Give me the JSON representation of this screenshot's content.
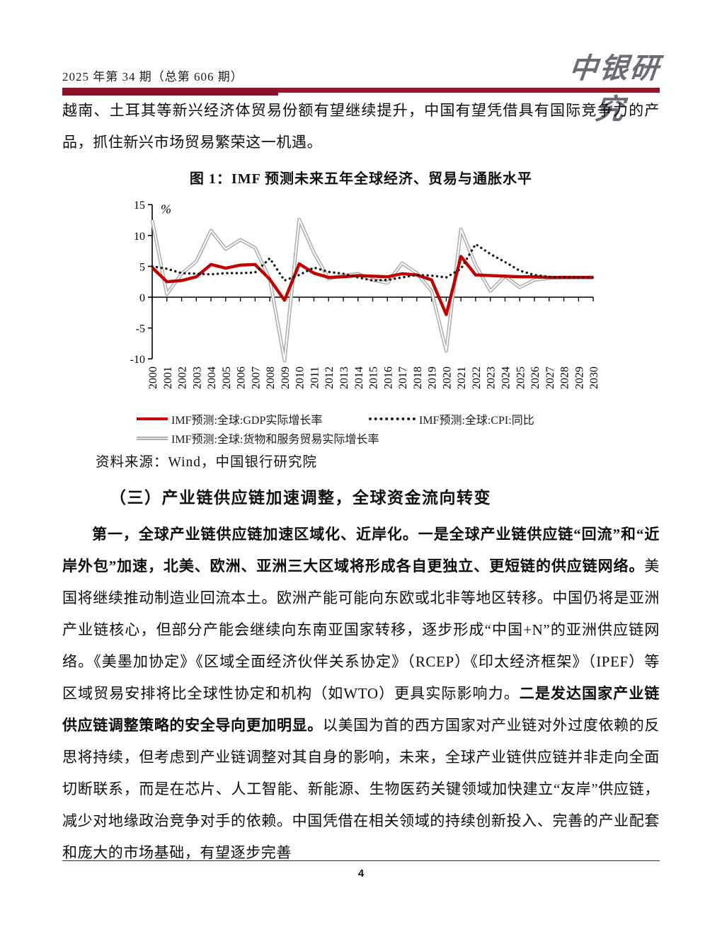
{
  "header": {
    "issue": "2025 年第 34 期（总第 606 期）",
    "logo": "中银研究"
  },
  "intro_paragraph": "越南、土耳其等新兴经济体贸易份额有望继续提升，中国有望凭借具有国际竞争力的产品，抓住新兴市场贸易繁荣这一机遇。",
  "figure": {
    "title": "图 1：IMF 预测未来五年全球经济、贸易与通胀水平",
    "source": "资料来源：Wind，中国银行研究院"
  },
  "chart_data": {
    "type": "line",
    "x": [
      2000,
      2001,
      2002,
      2003,
      2004,
      2005,
      2006,
      2007,
      2008,
      2009,
      2010,
      2011,
      2012,
      2013,
      2014,
      2015,
      2016,
      2017,
      2018,
      2019,
      2020,
      2021,
      2022,
      2023,
      2024,
      2025,
      2026,
      2027,
      2028,
      2029,
      2030
    ],
    "series": [
      {
        "name": "IMF预测:全球:GDP实际增长率",
        "style": "solid",
        "color": "#c00000",
        "values": [
          4.8,
          2.5,
          2.7,
          3.3,
          5.3,
          4.7,
          5.2,
          5.3,
          2.9,
          -0.5,
          5.4,
          3.9,
          3.2,
          3.3,
          3.5,
          3.4,
          3.3,
          3.8,
          3.6,
          2.8,
          -2.8,
          6.6,
          3.6,
          3.5,
          3.4,
          3.3,
          3.3,
          3.2,
          3.2,
          3.2,
          3.2
        ]
      },
      {
        "name": "IMF预测:全球:CPI:同比",
        "style": "dotted",
        "color": "#1a1a1a",
        "values": [
          5.0,
          4.6,
          3.9,
          3.8,
          3.7,
          3.9,
          3.9,
          4.0,
          6.3,
          2.7,
          3.6,
          4.8,
          4.1,
          3.8,
          3.2,
          2.7,
          2.8,
          3.2,
          3.6,
          3.5,
          3.2,
          4.6,
          8.6,
          7.0,
          5.7,
          4.3,
          3.6,
          3.3,
          3.2,
          3.2,
          3.2
        ]
      },
      {
        "name": "IMF预测:全球:货物和服务贸易实际增长率",
        "style": "double-gray",
        "color": "#b0b0b0",
        "values": [
          12.5,
          0.5,
          3.8,
          5.8,
          10.8,
          7.8,
          9.3,
          8.0,
          2.9,
          -10.3,
          12.6,
          7.2,
          3.0,
          3.5,
          3.8,
          2.8,
          2.3,
          5.5,
          3.9,
          1.0,
          -8.7,
          11.0,
          5.2,
          1.0,
          3.4,
          1.6,
          2.8,
          3.1,
          3.2,
          3.2,
          3.2
        ]
      }
    ],
    "title": "图 1：IMF 预测未来五年全球经济、贸易与通胀水平",
    "xlabel": "",
    "ylabel": "%",
    "ylim": [
      -10,
      15
    ],
    "yticks": [
      15,
      10,
      5,
      0,
      -5,
      -10
    ],
    "grid": false,
    "legend_position": "bottom"
  },
  "section": {
    "heading": "（三）产业链供应链加速调整，全球资金流向转变",
    "paragraph_runs": [
      {
        "bold": true,
        "text": "第一，全球产业链供应链加速区域化、近岸化。一是全球产业链供应链“回流”和“近岸外包”加速，北美、欧洲、亚洲三大区域将形成各自更独立、更短链的供应链网络。"
      },
      {
        "bold": false,
        "text": "美国将继续推动制造业回流本土。欧洲产能可能向东欧或北非等地区转移。中国仍将是亚洲产业链核心，但部分产能会继续向东南亚国家转移，逐步形成“中国+N”的亚洲供应链网络。《美墨加协定》《区域全面经济伙伴关系协定》（RCEP）《印太经济框架》（IPEF）等区域贸易安排将比全球性协定和机构（如WTO）更具实际影响力。"
      },
      {
        "bold": true,
        "text": "二是发达国家产业链供应链调整策略的安全导向更加明显。"
      },
      {
        "bold": false,
        "text": "以美国为首的西方国家对产业链对外过度依赖的反思将持续，但考虑到产业链调整对其自身的影响，未来，全球产业链供应链并非走向全面切断联系，而是在芯片、人工智能、新能源、生物医药关键领域加快建立“友岸”供应链，减少对地缘政治竞争对手的依赖。中国凭借在相关领域的持续创新投入、完善的产业配套和庞大的市场基础，有望逐步完善"
      }
    ]
  },
  "footer": {
    "page_number": "4"
  },
  "colors": {
    "accent_bar": "#8e1728",
    "gdp_line": "#c00000",
    "cpi_line": "#1a1a1a",
    "trade_line": "#b0b0b0"
  }
}
